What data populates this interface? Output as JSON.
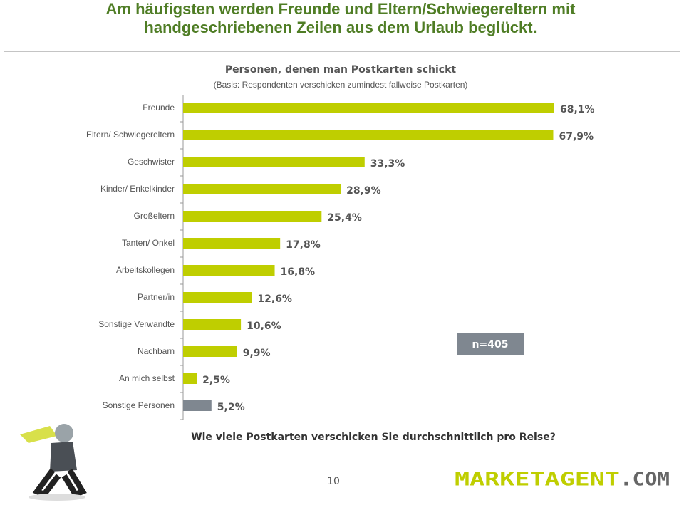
{
  "header": {
    "title_line1": "Am häufigsten werden Freunde und Eltern/Schwiegereltern mit",
    "title_line2": "handgeschriebenen Zeilen aus dem Urlaub beglückt."
  },
  "chart_data": {
    "type": "bar",
    "orientation": "horizontal",
    "title": "Personen, denen man Postkarten schickt",
    "subtitle": "(Basis: Respondenten verschicken zumindest fallweise Postkarten)",
    "categories": [
      "Freunde",
      "Eltern/ Schwiegereltern",
      "Geschwister",
      "Kinder/ Enkelkinder",
      "Großeltern",
      "Tanten/ Onkel",
      "Arbeitskollegen",
      "Partner/in",
      "Sonstige Verwandte",
      "Nachbarn",
      "An mich selbst",
      "Sonstige Personen"
    ],
    "values": [
      68.1,
      67.9,
      33.3,
      28.9,
      25.4,
      17.8,
      16.8,
      12.6,
      10.6,
      9.9,
      2.5,
      5.2
    ],
    "value_labels": [
      "68,1%",
      "67,9%",
      "33,3%",
      "28,9%",
      "25,4%",
      "17,8%",
      "16,8%",
      "12,6%",
      "10,6%",
      "9,9%",
      "2,5%",
      "5,2%"
    ],
    "colors": [
      "#bfce00",
      "#bfce00",
      "#bfce00",
      "#bfce00",
      "#bfce00",
      "#bfce00",
      "#bfce00",
      "#bfce00",
      "#bfce00",
      "#bfce00",
      "#bfce00",
      "#7f8790"
    ],
    "annotation": "n=405"
  },
  "question": "Wie viele Postkarten verschicken Sie durchschnittlich pro Reise?",
  "footer": {
    "page": "10",
    "logo_name": "MARKETAGENT",
    "logo_suffix": ".COM"
  }
}
